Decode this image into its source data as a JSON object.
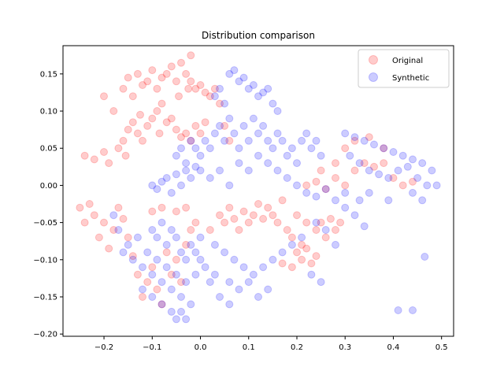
{
  "chart_data": {
    "type": "scatter",
    "title": "Distribution comparison",
    "xlabel": "",
    "ylabel": "",
    "xlim": [
      -0.285,
      0.525
    ],
    "ylim": [
      -0.203,
      0.188
    ],
    "xticks": [
      -0.2,
      -0.1,
      0.0,
      0.1,
      0.2,
      0.3,
      0.4,
      0.5
    ],
    "xtick_labels": [
      "−0.2",
      "−0.1",
      "0.0",
      "0.1",
      "0.2",
      "0.3",
      "0.4",
      "0.5"
    ],
    "yticks": [
      -0.2,
      -0.15,
      -0.1,
      -0.05,
      0.0,
      0.05,
      0.1,
      0.15
    ],
    "ytick_labels": [
      "−0.20",
      "−0.15",
      "−0.10",
      "−0.05",
      "0.00",
      "0.05",
      "0.10",
      "0.15"
    ],
    "grid": false,
    "legend_position": "top-right",
    "series": [
      {
        "name": "Original",
        "color": "#ff0000",
        "alpha": 0.2,
        "points": [
          [
            -0.24,
            0.04
          ],
          [
            -0.22,
            0.035
          ],
          [
            -0.2,
            0.045
          ],
          [
            -0.19,
            0.03
          ],
          [
            -0.17,
            0.05
          ],
          [
            -0.16,
            0.06
          ],
          [
            -0.155,
            0.04
          ],
          [
            -0.15,
            0.075
          ],
          [
            -0.14,
            0.085
          ],
          [
            -0.13,
            0.07
          ],
          [
            -0.125,
            0.095
          ],
          [
            -0.12,
            0.06
          ],
          [
            -0.11,
            0.08
          ],
          [
            -0.1,
            0.09
          ],
          [
            -0.09,
            0.1
          ],
          [
            -0.085,
            0.07
          ],
          [
            -0.08,
            0.11
          ],
          [
            -0.07,
            0.085
          ],
          [
            -0.06,
            0.09
          ],
          [
            -0.05,
            0.075
          ],
          [
            -0.04,
            0.065
          ],
          [
            -0.03,
            0.07
          ],
          [
            -0.02,
            0.06
          ],
          [
            -0.01,
            0.08
          ],
          [
            0.0,
            0.07
          ],
          [
            0.01,
            0.085
          ],
          [
            -0.2,
            0.12
          ],
          [
            -0.18,
            0.1
          ],
          [
            -0.16,
            0.13
          ],
          [
            -0.15,
            0.145
          ],
          [
            -0.14,
            0.12
          ],
          [
            -0.13,
            0.15
          ],
          [
            -0.12,
            0.135
          ],
          [
            -0.11,
            0.14
          ],
          [
            -0.1,
            0.155
          ],
          [
            -0.09,
            0.13
          ],
          [
            -0.08,
            0.145
          ],
          [
            -0.07,
            0.15
          ],
          [
            -0.06,
            0.16
          ],
          [
            -0.05,
            0.14
          ],
          [
            -0.045,
            0.12
          ],
          [
            -0.04,
            0.165
          ],
          [
            -0.03,
            0.15
          ],
          [
            -0.025,
            0.13
          ],
          [
            -0.02,
            0.14
          ],
          [
            -0.01,
            0.13
          ],
          [
            0.0,
            0.135
          ],
          [
            0.01,
            0.125
          ],
          [
            0.02,
            0.12
          ],
          [
            0.03,
            0.13
          ],
          [
            0.04,
            0.11
          ],
          [
            -0.02,
            0.175
          ],
          [
            0.05,
            0.08
          ],
          [
            0.06,
            0.06
          ],
          [
            -0.25,
            -0.03
          ],
          [
            -0.24,
            -0.05
          ],
          [
            -0.23,
            -0.025
          ],
          [
            -0.22,
            -0.04
          ],
          [
            -0.21,
            -0.07
          ],
          [
            -0.2,
            -0.05
          ],
          [
            -0.19,
            -0.085
          ],
          [
            -0.18,
            -0.06
          ],
          [
            -0.17,
            -0.03
          ],
          [
            -0.16,
            -0.045
          ],
          [
            -0.15,
            -0.07
          ],
          [
            -0.14,
            -0.095
          ],
          [
            -0.13,
            -0.12
          ],
          [
            -0.12,
            -0.15
          ],
          [
            -0.11,
            -0.13
          ],
          [
            -0.1,
            -0.11
          ],
          [
            -0.09,
            -0.14
          ],
          [
            -0.08,
            -0.16
          ],
          [
            -0.07,
            -0.09
          ],
          [
            -0.06,
            -0.12
          ],
          [
            -0.05,
            -0.1
          ],
          [
            -0.04,
            -0.13
          ],
          [
            -0.03,
            -0.08
          ],
          [
            -0.02,
            -0.06
          ],
          [
            -0.01,
            -0.05
          ],
          [
            -0.1,
            -0.035
          ],
          [
            -0.08,
            -0.03
          ],
          [
            -0.05,
            -0.035
          ],
          [
            -0.03,
            -0.03
          ],
          [
            0.02,
            -0.06
          ],
          [
            0.04,
            -0.04
          ],
          [
            0.05,
            -0.05
          ],
          [
            0.06,
            -0.03
          ],
          [
            0.07,
            -0.045
          ],
          [
            0.08,
            -0.06
          ],
          [
            0.09,
            -0.035
          ],
          [
            0.1,
            -0.05
          ],
          [
            0.11,
            -0.04
          ],
          [
            0.12,
            -0.025
          ],
          [
            0.13,
            -0.045
          ],
          [
            0.14,
            -0.03
          ],
          [
            0.15,
            -0.04
          ],
          [
            0.16,
            -0.05
          ],
          [
            0.17,
            -0.02
          ],
          [
            0.18,
            -0.06
          ],
          [
            0.19,
            -0.07
          ],
          [
            0.2,
            -0.04
          ],
          [
            0.21,
            -0.08
          ],
          [
            0.22,
            -0.05
          ],
          [
            0.24,
            -0.06
          ],
          [
            0.25,
            -0.05
          ],
          [
            0.26,
            -0.07
          ],
          [
            0.27,
            -0.045
          ],
          [
            0.28,
            -0.06
          ],
          [
            0.29,
            -0.05
          ],
          [
            0.2,
            -0.09
          ],
          [
            0.21,
            -0.1
          ],
          [
            0.22,
            -0.085
          ],
          [
            0.23,
            -0.105
          ],
          [
            0.24,
            -0.095
          ],
          [
            0.19,
            -0.11
          ],
          [
            0.17,
            -0.105
          ],
          [
            0.22,
            0.0
          ],
          [
            0.24,
            0.005
          ],
          [
            0.26,
            -0.005
          ],
          [
            0.28,
            0.01
          ],
          [
            0.3,
            0.0
          ],
          [
            0.32,
            0.02
          ],
          [
            0.34,
            0.03
          ],
          [
            0.36,
            0.025
          ],
          [
            0.38,
            0.03
          ],
          [
            0.4,
            0.01
          ],
          [
            0.42,
            0.0
          ],
          [
            0.44,
            0.005
          ],
          [
            0.3,
            0.05
          ],
          [
            0.32,
            0.06
          ],
          [
            0.35,
            0.065
          ],
          [
            0.38,
            0.05
          ],
          [
            0.28,
            0.03
          ],
          [
            0.25,
            0.02
          ]
        ]
      },
      {
        "name": "Synthetic",
        "color": "#0000ff",
        "alpha": 0.2,
        "points": [
          [
            0.06,
            0.15
          ],
          [
            0.07,
            0.155
          ],
          [
            0.08,
            0.14
          ],
          [
            0.09,
            0.145
          ],
          [
            0.1,
            0.13
          ],
          [
            0.11,
            0.135
          ],
          [
            0.12,
            0.12
          ],
          [
            0.13,
            0.125
          ],
          [
            0.14,
            0.13
          ],
          [
            0.03,
            0.12
          ],
          [
            0.04,
            0.13
          ],
          [
            0.05,
            0.11
          ],
          [
            0.15,
            0.11
          ],
          [
            0.16,
            0.1
          ],
          [
            -0.05,
            0.04
          ],
          [
            -0.04,
            0.05
          ],
          [
            -0.03,
            0.03
          ],
          [
            -0.02,
            0.06
          ],
          [
            -0.01,
            0.05
          ],
          [
            0.0,
            0.04
          ],
          [
            0.01,
            0.06
          ],
          [
            0.02,
            0.05
          ],
          [
            0.03,
            0.07
          ],
          [
            0.04,
            0.08
          ],
          [
            0.05,
            0.06
          ],
          [
            0.06,
            0.09
          ],
          [
            0.07,
            0.07
          ],
          [
            0.08,
            0.05
          ],
          [
            0.09,
            0.08
          ],
          [
            0.1,
            0.06
          ],
          [
            0.11,
            0.09
          ],
          [
            0.12,
            0.07
          ],
          [
            0.13,
            0.08
          ],
          [
            0.14,
            0.06
          ],
          [
            0.15,
            0.05
          ],
          [
            0.16,
            0.07
          ],
          [
            0.17,
            0.06
          ],
          [
            0.18,
            0.04
          ],
          [
            0.19,
            0.05
          ],
          [
            0.2,
            0.03
          ],
          [
            0.21,
            0.06
          ],
          [
            0.22,
            0.07
          ],
          [
            0.23,
            0.05
          ],
          [
            0.24,
            0.06
          ],
          [
            0.25,
            0.04
          ],
          [
            -0.1,
            0.0
          ],
          [
            -0.09,
            -0.005
          ],
          [
            -0.08,
            0.005
          ],
          [
            -0.07,
            0.01
          ],
          [
            -0.06,
            -0.01
          ],
          [
            -0.05,
            0.015
          ],
          [
            -0.04,
            0.0
          ],
          [
            -0.03,
            0.02
          ],
          [
            -0.02,
            0.01
          ],
          [
            -0.01,
            0.025
          ],
          [
            0.0,
            0.02
          ],
          [
            0.02,
            0.01
          ],
          [
            0.04,
            0.02
          ],
          [
            0.06,
            0.0
          ],
          [
            0.08,
            0.03
          ],
          [
            0.1,
            0.02
          ],
          [
            0.12,
            0.04
          ],
          [
            0.14,
            0.03
          ],
          [
            0.16,
            0.02
          ],
          [
            0.18,
            0.01
          ],
          [
            0.2,
            0.0
          ],
          [
            0.22,
            -0.01
          ],
          [
            0.24,
            -0.015
          ],
          [
            0.26,
            -0.005
          ],
          [
            0.3,
            0.07
          ],
          [
            0.32,
            0.065
          ],
          [
            0.34,
            0.06
          ],
          [
            0.36,
            0.055
          ],
          [
            0.38,
            0.05
          ],
          [
            0.4,
            0.045
          ],
          [
            0.42,
            0.04
          ],
          [
            0.44,
            0.035
          ],
          [
            0.46,
            0.03
          ],
          [
            0.48,
            0.02
          ],
          [
            0.31,
            0.04
          ],
          [
            0.33,
            0.03
          ],
          [
            0.35,
            0.02
          ],
          [
            0.37,
            0.015
          ],
          [
            0.39,
            0.01
          ],
          [
            0.41,
            0.02
          ],
          [
            0.43,
            0.025
          ],
          [
            0.45,
            0.01
          ],
          [
            0.47,
            0.0
          ],
          [
            0.49,
            0.0
          ],
          [
            0.35,
            -0.01
          ],
          [
            0.39,
            -0.02
          ],
          [
            0.44,
            -0.01
          ],
          [
            0.46,
            -0.02
          ],
          [
            0.3,
            -0.01
          ],
          [
            0.33,
            -0.02
          ],
          [
            -0.18,
            -0.04
          ],
          [
            -0.17,
            -0.06
          ],
          [
            -0.16,
            -0.09
          ],
          [
            -0.15,
            -0.08
          ],
          [
            -0.14,
            -0.1
          ],
          [
            -0.13,
            -0.07
          ],
          [
            -0.12,
            -0.11
          ],
          [
            -0.11,
            -0.09
          ],
          [
            -0.1,
            -0.12
          ],
          [
            -0.09,
            -0.1
          ],
          [
            -0.08,
            -0.13
          ],
          [
            -0.07,
            -0.11
          ],
          [
            -0.06,
            -0.14
          ],
          [
            -0.05,
            -0.12
          ],
          [
            -0.04,
            -0.15
          ],
          [
            -0.03,
            -0.13
          ],
          [
            -0.02,
            -0.16
          ],
          [
            -0.01,
            -0.12
          ],
          [
            0.0,
            -0.1
          ],
          [
            0.01,
            -0.11
          ],
          [
            0.02,
            -0.13
          ],
          [
            0.03,
            -0.12
          ],
          [
            -0.1,
            -0.06
          ],
          [
            -0.09,
            -0.07
          ],
          [
            -0.08,
            -0.05
          ],
          [
            -0.07,
            -0.08
          ],
          [
            -0.06,
            -0.06
          ],
          [
            -0.05,
            -0.07
          ],
          [
            -0.04,
            -0.09
          ],
          [
            -0.03,
            -0.1
          ],
          [
            -0.02,
            -0.08
          ],
          [
            -0.01,
            -0.09
          ],
          [
            0.0,
            -0.07
          ],
          [
            -0.06,
            -0.17
          ],
          [
            -0.05,
            -0.18
          ],
          [
            -0.04,
            -0.17
          ],
          [
            -0.03,
            -0.18
          ],
          [
            -0.08,
            -0.16
          ],
          [
            -0.1,
            -0.15
          ],
          [
            -0.12,
            -0.14
          ],
          [
            0.03,
            -0.08
          ],
          [
            0.05,
            -0.09
          ],
          [
            0.07,
            -0.1
          ],
          [
            0.09,
            -0.11
          ],
          [
            0.11,
            -0.12
          ],
          [
            0.13,
            -0.11
          ],
          [
            0.15,
            -0.1
          ],
          [
            0.17,
            -0.09
          ],
          [
            0.19,
            -0.08
          ],
          [
            0.21,
            -0.07
          ],
          [
            0.06,
            -0.13
          ],
          [
            0.08,
            -0.14
          ],
          [
            0.1,
            -0.13
          ],
          [
            0.12,
            -0.15
          ],
          [
            0.14,
            -0.14
          ],
          [
            0.04,
            -0.15
          ],
          [
            0.06,
            -0.16
          ],
          [
            0.24,
            -0.05
          ],
          [
            0.26,
            -0.06
          ],
          [
            0.28,
            -0.08
          ],
          [
            0.3,
            -0.03
          ],
          [
            0.32,
            -0.04
          ],
          [
            0.34,
            -0.055
          ],
          [
            0.28,
            -0.02
          ],
          [
            0.25,
            -0.13
          ],
          [
            0.23,
            -0.12
          ],
          [
            0.41,
            -0.168
          ],
          [
            0.44,
            -0.168
          ],
          [
            0.465,
            -0.096
          ]
        ]
      }
    ]
  }
}
